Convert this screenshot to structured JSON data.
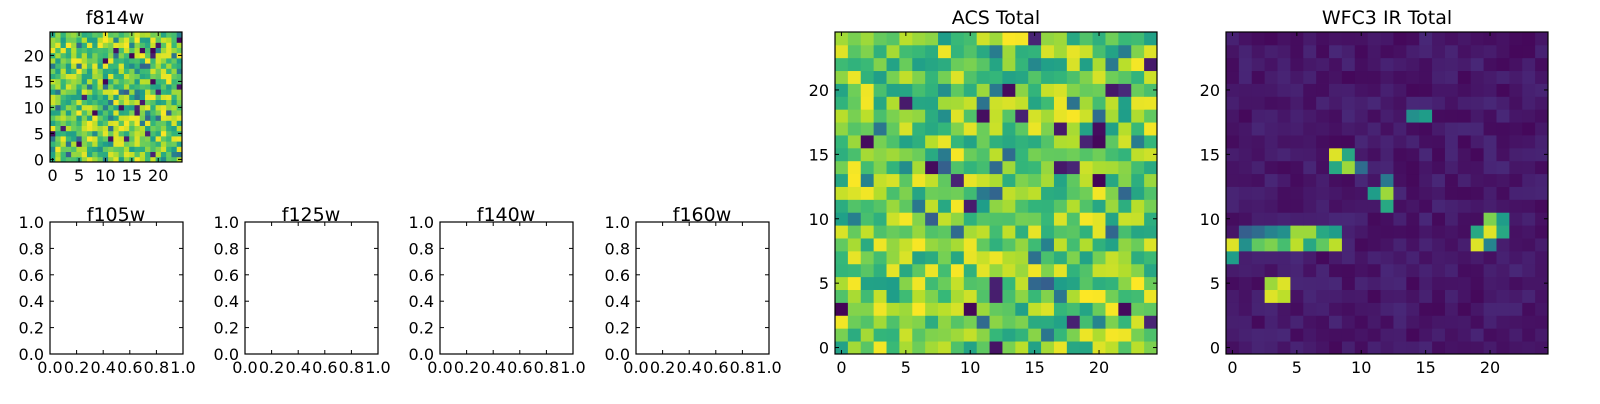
{
  "chart_data": [
    {
      "type": "heatmap",
      "title": "f814w",
      "xlim": [
        -0.5,
        24.5
      ],
      "ylim": [
        -0.5,
        24.5
      ],
      "x_ticks": [
        0,
        5,
        10,
        15,
        20
      ],
      "y_ticks": [
        0,
        5,
        10,
        15,
        20
      ],
      "grid_size": [
        25,
        25
      ],
      "colormap": "viridis",
      "origin": "lower",
      "value_range": [
        0,
        1
      ],
      "seed": 814,
      "pattern": "noise-high"
    },
    {
      "type": "empty",
      "title": "f105w",
      "xlim": [
        0,
        1
      ],
      "ylim": [
        0,
        1
      ],
      "x_ticks": [
        "0.0",
        "0.2",
        "0.4",
        "0.6",
        "0.8",
        "1.0"
      ],
      "y_ticks": [
        "0.0",
        "0.2",
        "0.4",
        "0.6",
        "0.8",
        "1.0"
      ]
    },
    {
      "type": "empty",
      "title": "f125w",
      "xlim": [
        0,
        1
      ],
      "ylim": [
        0,
        1
      ],
      "x_ticks": [
        "0.0",
        "0.2",
        "0.4",
        "0.6",
        "0.8",
        "1.0"
      ],
      "y_ticks": [
        "0.0",
        "0.2",
        "0.4",
        "0.6",
        "0.8",
        "1.0"
      ]
    },
    {
      "type": "empty",
      "title": "f140w",
      "xlim": [
        0,
        1
      ],
      "ylim": [
        0,
        1
      ],
      "x_ticks": [
        "0.0",
        "0.2",
        "0.4",
        "0.6",
        "0.8",
        "1.0"
      ],
      "y_ticks": [
        "0.0",
        "0.2",
        "0.4",
        "0.6",
        "0.8",
        "1.0"
      ]
    },
    {
      "type": "empty",
      "title": "f160w",
      "xlim": [
        0,
        1
      ],
      "ylim": [
        0,
        1
      ],
      "x_ticks": [
        "0.0",
        "0.2",
        "0.4",
        "0.6",
        "0.8",
        "1.0"
      ],
      "y_ticks": [
        "0.0",
        "0.2",
        "0.4",
        "0.6",
        "0.8",
        "1.0"
      ]
    },
    {
      "type": "heatmap",
      "title": "ACS Total",
      "xlim": [
        -0.5,
        24.5
      ],
      "ylim": [
        -0.5,
        24.5
      ],
      "x_ticks": [
        0,
        5,
        10,
        15,
        20
      ],
      "y_ticks": [
        0,
        5,
        10,
        15,
        20
      ],
      "grid_size": [
        25,
        25
      ],
      "colormap": "viridis",
      "origin": "lower",
      "value_range": [
        0,
        1
      ],
      "seed": 4242,
      "pattern": "noise-high"
    },
    {
      "type": "heatmap",
      "title": "WFC3 IR Total",
      "xlim": [
        -0.5,
        24.5
      ],
      "ylim": [
        -0.5,
        24.5
      ],
      "x_ticks": [
        0,
        5,
        10,
        15,
        20
      ],
      "y_ticks": [
        0,
        5,
        10,
        15,
        20
      ],
      "grid_size": [
        25,
        25
      ],
      "colormap": "viridis",
      "origin": "lower",
      "value_range": [
        0,
        1
      ],
      "seed": 3,
      "pattern": "sparse-low",
      "bright_cells": [
        {
          "x": 0,
          "y": 8,
          "v": 0.95
        },
        {
          "x": 1,
          "y": 8,
          "v": 0.5
        },
        {
          "x": 2,
          "y": 8,
          "v": 0.75
        },
        {
          "x": 3,
          "y": 8,
          "v": 0.8
        },
        {
          "x": 4,
          "y": 8,
          "v": 0.7
        },
        {
          "x": 5,
          "y": 8,
          "v": 0.9
        },
        {
          "x": 6,
          "y": 8,
          "v": 0.6
        },
        {
          "x": 7,
          "y": 8,
          "v": 0.75
        },
        {
          "x": 8,
          "y": 8,
          "v": 0.9
        },
        {
          "x": 0,
          "y": 7,
          "v": 0.55
        },
        {
          "x": 2,
          "y": 9,
          "v": 0.35
        },
        {
          "x": 4,
          "y": 9,
          "v": 0.5
        },
        {
          "x": 5,
          "y": 9,
          "v": 0.85
        },
        {
          "x": 6,
          "y": 9,
          "v": 0.85
        },
        {
          "x": 7,
          "y": 9,
          "v": 0.6
        },
        {
          "x": 8,
          "y": 9,
          "v": 0.55
        },
        {
          "x": 1,
          "y": 9,
          "v": 0.3
        },
        {
          "x": 3,
          "y": 9,
          "v": 0.45
        },
        {
          "x": 3,
          "y": 4,
          "v": 0.95
        },
        {
          "x": 4,
          "y": 4,
          "v": 0.9
        },
        {
          "x": 3,
          "y": 5,
          "v": 0.85
        },
        {
          "x": 4,
          "y": 5,
          "v": 0.95
        },
        {
          "x": 8,
          "y": 14,
          "v": 0.6
        },
        {
          "x": 8,
          "y": 15,
          "v": 0.95
        },
        {
          "x": 9,
          "y": 14,
          "v": 0.85
        },
        {
          "x": 9,
          "y": 15,
          "v": 0.6
        },
        {
          "x": 10,
          "y": 14,
          "v": 0.35
        },
        {
          "x": 11,
          "y": 12,
          "v": 0.55
        },
        {
          "x": 12,
          "y": 12,
          "v": 0.85
        },
        {
          "x": 12,
          "y": 11,
          "v": 0.6
        },
        {
          "x": 12,
          "y": 13,
          "v": 0.4
        },
        {
          "x": 14,
          "y": 18,
          "v": 0.5
        },
        {
          "x": 15,
          "y": 18,
          "v": 0.55
        },
        {
          "x": 19,
          "y": 8,
          "v": 0.95
        },
        {
          "x": 19,
          "y": 9,
          "v": 0.6
        },
        {
          "x": 20,
          "y": 9,
          "v": 0.95
        },
        {
          "x": 20,
          "y": 10,
          "v": 0.8
        },
        {
          "x": 21,
          "y": 9,
          "v": 0.6
        },
        {
          "x": 21,
          "y": 10,
          "v": 0.55
        },
        {
          "x": 20,
          "y": 8,
          "v": 0.45
        }
      ]
    }
  ]
}
